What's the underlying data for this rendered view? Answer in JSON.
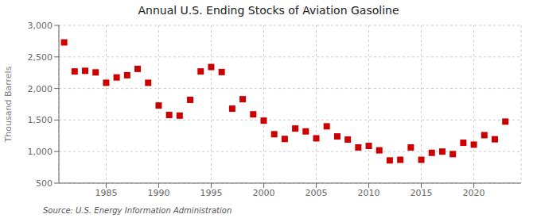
{
  "chart_data": {
    "type": "scatter",
    "title": "Annual U.S. Ending Stocks of Aviation Gasoline",
    "ylabel": "Thousand Barrels",
    "annotation": "Source: U.S. Energy Information Administration",
    "color": "#cc0000",
    "marker": "square",
    "grid": true,
    "xlim": [
      1980.5,
      2024.5
    ],
    "xticks": [
      1985,
      1990,
      1995,
      2000,
      2005,
      2010,
      2015,
      2020
    ],
    "ylim": [
      500,
      3000
    ],
    "yticks": [
      500,
      {
        "value": 1000,
        "label": "1,000"
      },
      {
        "value": 1500,
        "label": "1,500"
      },
      {
        "value": 2000,
        "label": "2,000"
      },
      {
        "value": 2500,
        "label": "2,500"
      },
      {
        "value": 3000,
        "label": "3,000"
      }
    ],
    "x": [
      1981,
      1982,
      1983,
      1984,
      1985,
      1986,
      1987,
      1988,
      1989,
      1990,
      1991,
      1992,
      1993,
      1994,
      1995,
      1996,
      1997,
      1998,
      1999,
      2000,
      2001,
      2002,
      2003,
      2004,
      2005,
      2006,
      2007,
      2008,
      2009,
      2010,
      2011,
      2012,
      2013,
      2014,
      2015,
      2016,
      2017,
      2018,
      2019,
      2020,
      2021,
      2022,
      2023
    ],
    "values": [
      2730,
      2270,
      2280,
      2255,
      2090,
      2175,
      2210,
      2310,
      2090,
      1730,
      1580,
      1570,
      1820,
      2270,
      2340,
      2260,
      1680,
      1830,
      1590,
      1490,
      1275,
      1200,
      1365,
      1320,
      1210,
      1400,
      1240,
      1190,
      1065,
      1090,
      1020,
      860,
      870,
      1065,
      870,
      980,
      1000,
      960,
      1140,
      1110,
      1260,
      1195,
      1475
    ]
  }
}
